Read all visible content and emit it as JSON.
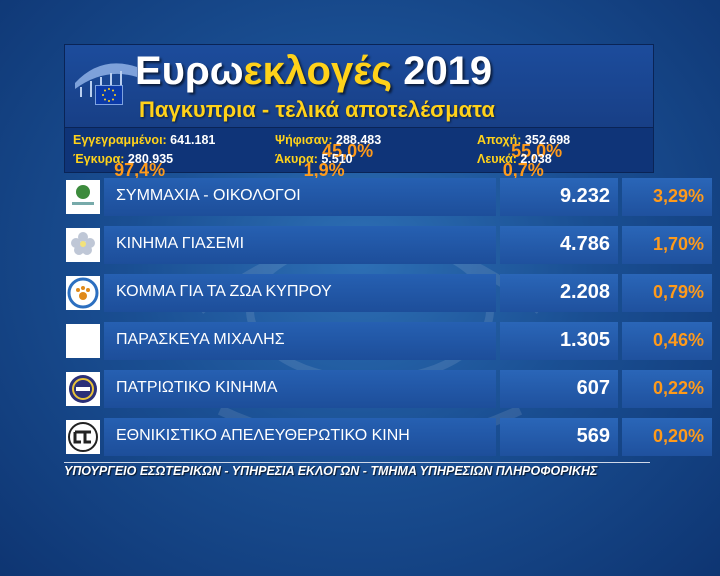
{
  "header": {
    "title_part1": "Ευρω",
    "title_part2": "εκλογές",
    "title_year": " 2019",
    "subtitle": "Παγκυπρια - τελικά αποτελέσματα"
  },
  "stats": {
    "registered": {
      "label": "Εγγεγραμμένοι:",
      "value": " 641.181"
    },
    "voted": {
      "label": "Ψήφισαν:",
      "value": " 288.483",
      "pct": " 45,0%"
    },
    "abstention": {
      "label": "Αποχή:",
      "value": " 352.698",
      "pct": " 55,0%"
    },
    "valid": {
      "label": "Έγκυρα:",
      "value": " 280.935",
      "pct": " 97,4%"
    },
    "invalid": {
      "label": "Άκυρα:",
      "value": " 5.510",
      "pct": " 1,9%"
    },
    "blank": {
      "label": "Λευκά:",
      "value": " 2.038",
      "pct": " 0,7%"
    }
  },
  "results": [
    {
      "name": "ΣΥΜΜΑΧΙΑ - ΟΙΚΟΛΟΓΟΙ",
      "votes": "9.232",
      "pct": "3,29%",
      "logo": "ecologists-logo"
    },
    {
      "name": "ΚΙΝΗΜΑ ΓΙΑΣΕΜΙ",
      "votes": "4.786",
      "pct": "1,70%",
      "logo": "jasmine-logo"
    },
    {
      "name": "ΚΟΜΜΑ ΓΙΑ ΤΑ ΖΩΑ ΚΥΠΡΟΥ",
      "votes": "2.208",
      "pct": "0,79%",
      "logo": "paw-logo"
    },
    {
      "name": "ΠΑΡΑΣΚΕΥΑ ΜΙΧΑΛΗΣ",
      "votes": "1.305",
      "pct": "0,46%",
      "logo": "blank-logo"
    },
    {
      "name": "ΠΑΤΡΙΩΤΙΚΟ ΚΙΝΗΜΑ",
      "votes": "607",
      "pct": "0,22%",
      "logo": "patriotic-logo"
    },
    {
      "name": "ΕΘΝΙΚΙΣΤΙΚΟ ΑΠΕΛΕΥΘΕΡΩΤΙΚΟ ΚΙΝΗ",
      "votes": "569",
      "pct": "0,20%",
      "logo": "nationalist-logo"
    }
  ],
  "footer": "ΥΠΟΥΡΓΕΙΟ ΕΣΩΤΕΡΙΚΩΝ - ΥΠΗΡΕΣΙΑ ΕΚΛΟΓΩΝ - ΤΜΗΜΑ ΥΠΗΡΕΣΙΩΝ ΠΛΗΡΟΦΟΡΙΚΗΣ",
  "colors": {
    "accent": "#ffd21a",
    "percent": "#ff9a1a",
    "panel": "#1d4e9a"
  }
}
